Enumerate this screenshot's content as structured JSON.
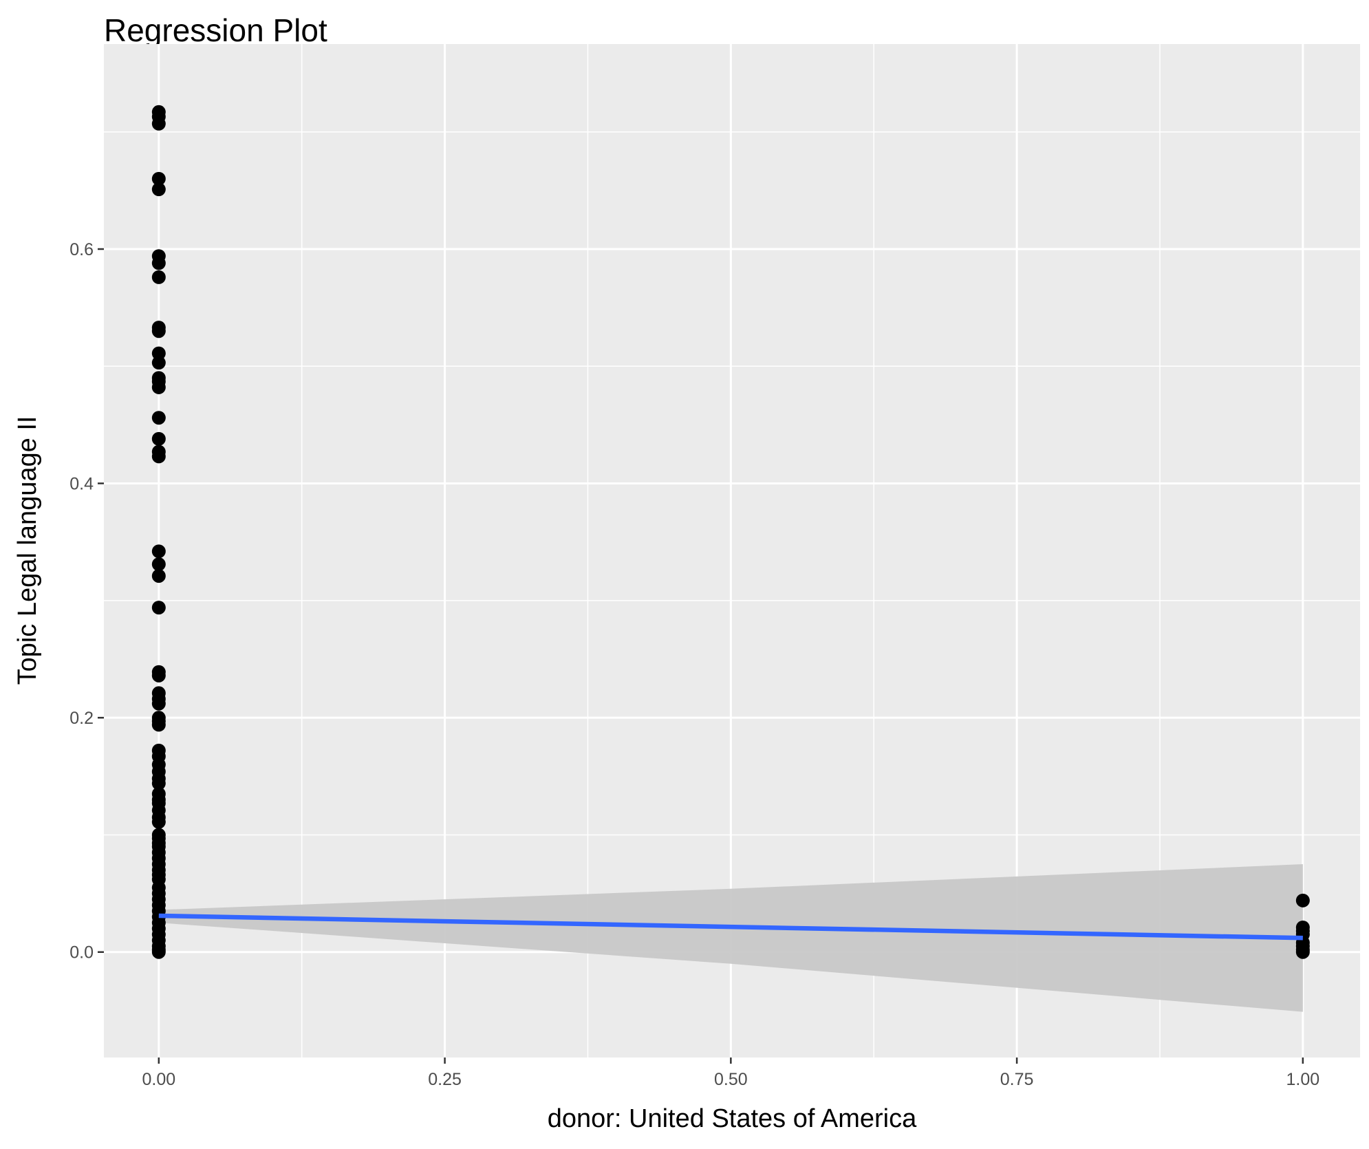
{
  "chart_data": {
    "type": "scatter",
    "title": "Regression Plot",
    "xlabel": "donor: United States of America",
    "ylabel": "Topic Legal language II",
    "xlim": [
      -0.048,
      1.05
    ],
    "ylim": [
      -0.09,
      0.775
    ],
    "x_ticks": [
      0,
      0.25,
      0.5,
      0.75,
      1
    ],
    "x_tick_labels": [
      "0.00",
      "0.25",
      "0.50",
      "0.75",
      "1.00"
    ],
    "y_ticks": [
      0,
      0.2,
      0.4,
      0.6
    ],
    "y_tick_labels": [
      "0.0",
      "0.2",
      "0.4",
      "0.6"
    ],
    "grid": true,
    "point_color": "#000000",
    "line_color": "#3366FF",
    "ribbon_color": "#C8C8C8",
    "panel_background": "#EBEBEB",
    "points_x0": [
      0.717,
      0.713,
      0.707,
      0.66,
      0.651,
      0.594,
      0.588,
      0.576,
      0.533,
      0.53,
      0.511,
      0.503,
      0.49,
      0.487,
      0.482,
      0.456,
      0.438,
      0.427,
      0.423,
      0.342,
      0.331,
      0.321,
      0.294,
      0.239,
      0.236,
      0.221,
      0.216,
      0.212,
      0.2,
      0.197,
      0.194,
      0.172,
      0.167,
      0.16,
      0.154,
      0.148,
      0.144,
      0.135,
      0.13,
      0.127,
      0.121,
      0.115,
      0.111,
      0.1,
      0.097,
      0.093,
      0.09,
      0.085,
      0.08,
      0.075,
      0.07,
      0.066,
      0.062,
      0.055,
      0.05,
      0.045,
      0.04,
      0.035,
      0.03,
      0.025,
      0.02,
      0.015,
      0.01,
      0.005,
      0.002,
      0.0
    ],
    "points_x1": [
      0.044,
      0.021,
      0.018,
      0.015,
      0.008,
      0.005,
      0.002,
      0.0
    ],
    "regression": {
      "x": [
        0,
        1
      ],
      "y": [
        0.031,
        0.012
      ]
    },
    "confidence_band": {
      "x": [
        0,
        0.5,
        1
      ],
      "lower": [
        0.025,
        -0.01,
        -0.051
      ],
      "upper": [
        0.036,
        0.054,
        0.075
      ]
    }
  }
}
